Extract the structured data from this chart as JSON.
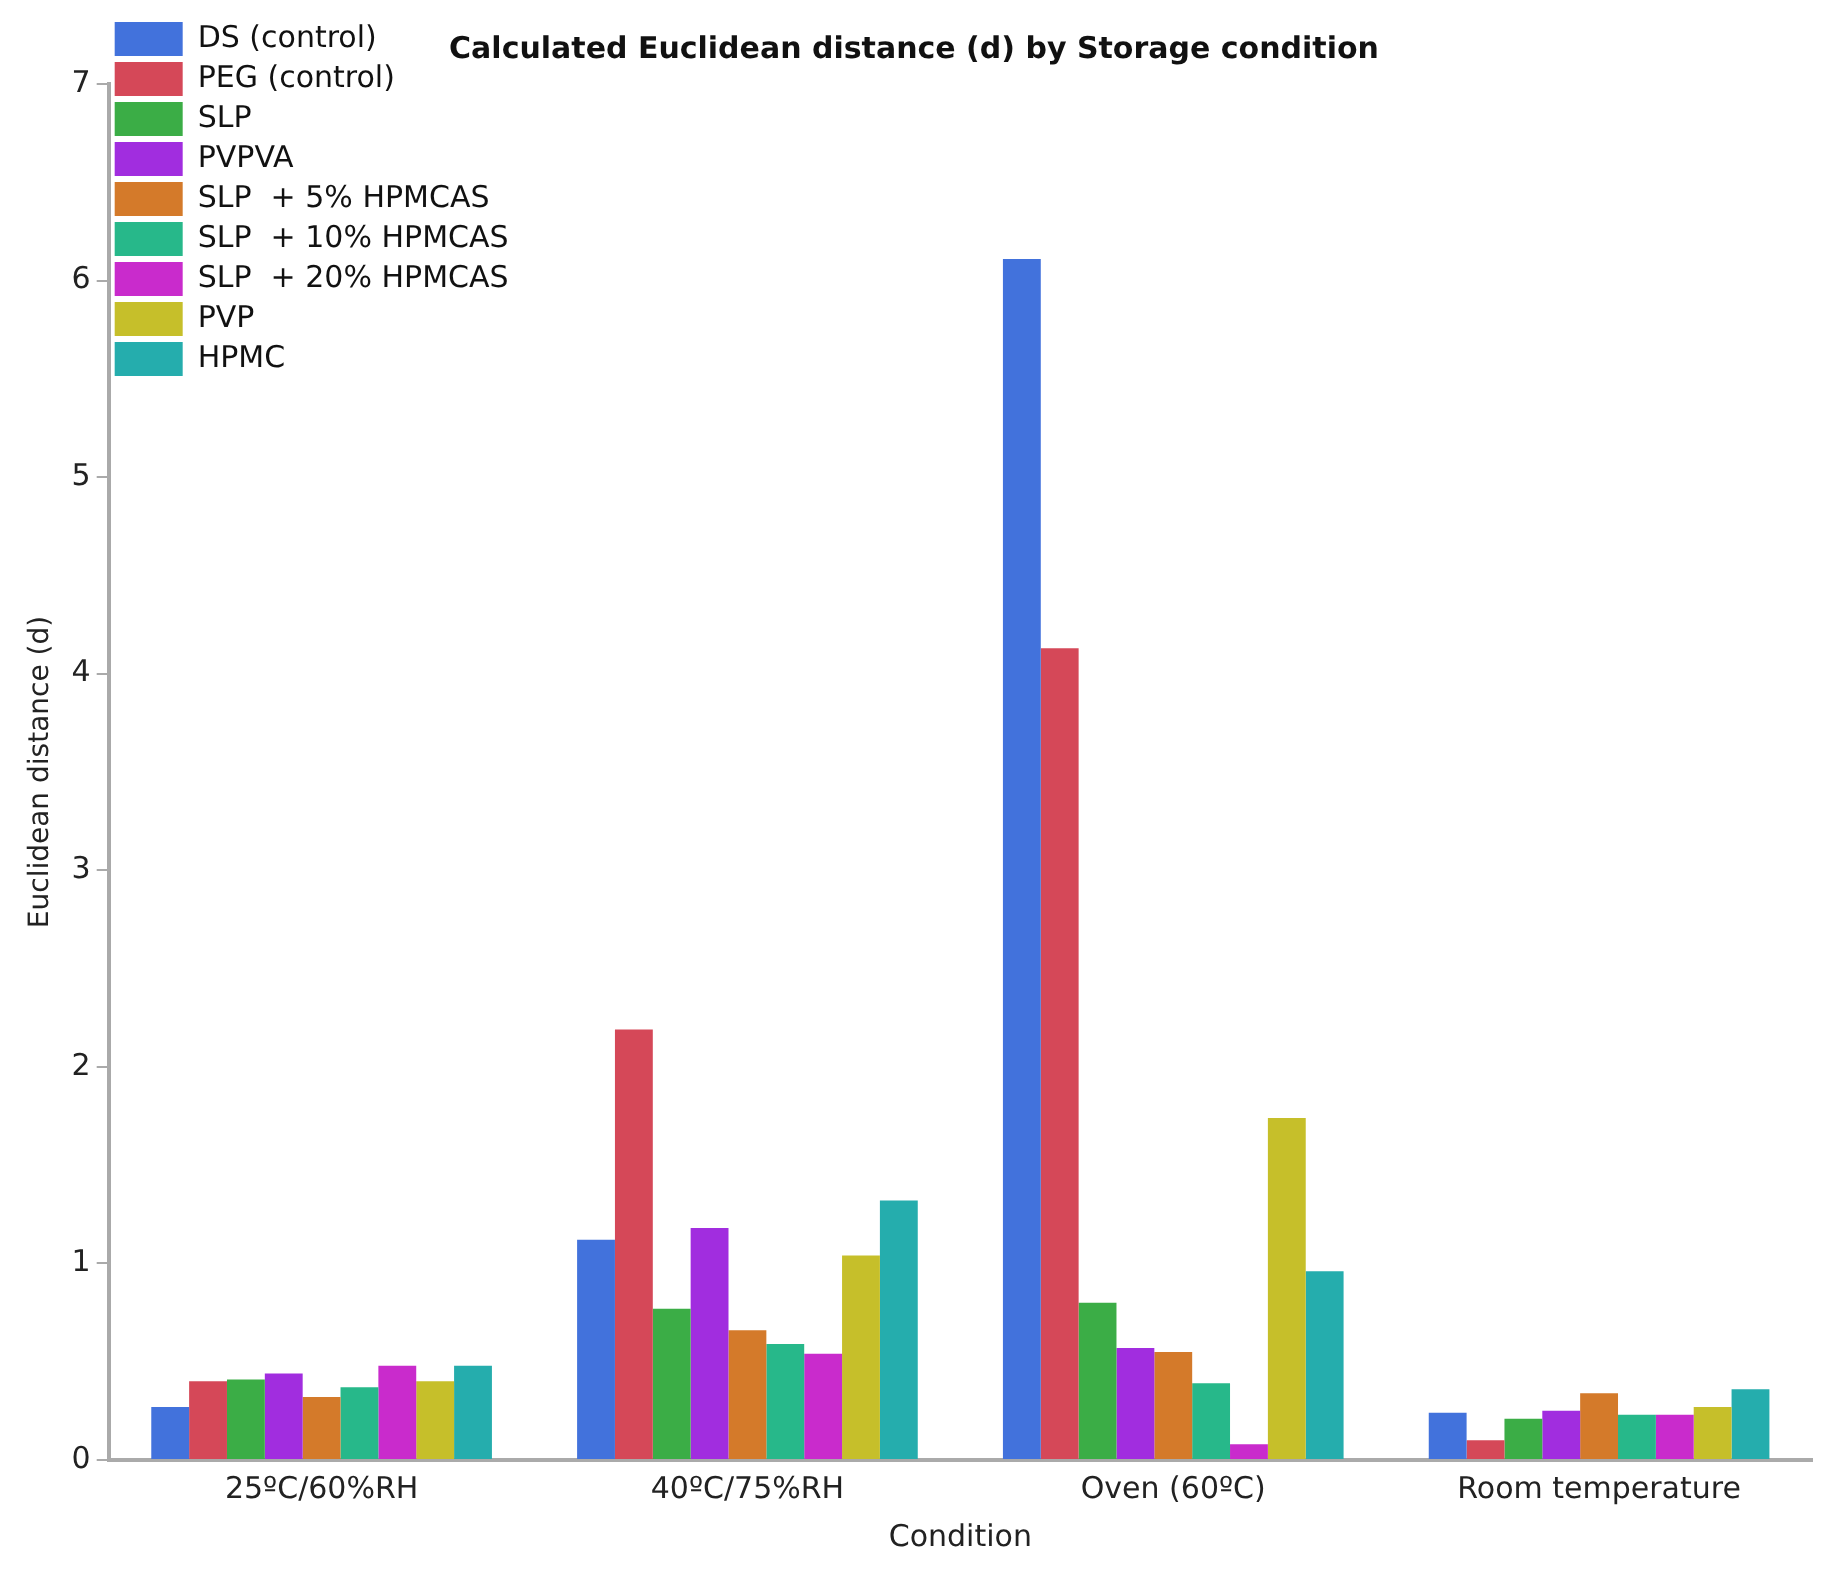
{
  "chart_data": {
    "type": "bar",
    "title": "Calculated Euclidean distance (d) by Storage condition",
    "xlabel": "Condition",
    "ylabel": "Euclidean distance (d)",
    "categories": [
      "25ºC/60%RH",
      "40ºC/75%RH",
      "Oven (60ºC)",
      "Room temperature"
    ],
    "series": [
      {
        "name": "DS (control)",
        "color": "#4272dc",
        "values": [
          0.27,
          1.12,
          6.11,
          0.24
        ]
      },
      {
        "name": "PEG (control)",
        "color": "#d54858",
        "values": [
          0.4,
          2.19,
          4.13,
          0.1
        ]
      },
      {
        "name": "SLP",
        "color": "#3bad46",
        "values": [
          0.41,
          0.77,
          0.8,
          0.21
        ]
      },
      {
        "name": "PVPVA",
        "color": "#a12ddf",
        "values": [
          0.44,
          1.18,
          0.57,
          0.25
        ]
      },
      {
        "name": "SLP  + 5% HPMCAS",
        "color": "#d47a2a",
        "values": [
          0.32,
          0.66,
          0.55,
          0.34
        ]
      },
      {
        "name": "SLP  + 10% HPMCAS",
        "color": "#27b88a",
        "values": [
          0.37,
          0.59,
          0.39,
          0.23
        ]
      },
      {
        "name": "SLP  + 20% HPMCAS",
        "color": "#c92bcc",
        "values": [
          0.48,
          0.54,
          0.08,
          0.23
        ]
      },
      {
        "name": "PVP",
        "color": "#c6bf2a",
        "values": [
          0.4,
          1.04,
          1.74,
          0.27
        ]
      },
      {
        "name": "HPMC",
        "color": "#25adad",
        "values": [
          0.48,
          1.32,
          0.96,
          0.36
        ]
      }
    ],
    "ylim": [
      0,
      7
    ],
    "yticks": [
      0,
      1,
      2,
      3,
      4,
      5,
      6,
      7
    ],
    "grid": false,
    "legend": "top left"
  }
}
